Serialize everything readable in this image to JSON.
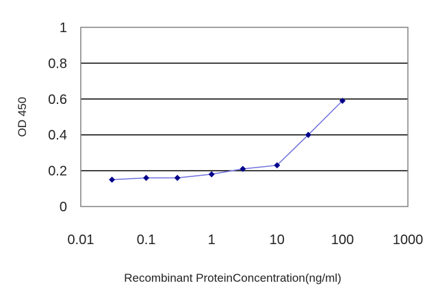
{
  "chart_data": {
    "type": "line",
    "xscale": "log",
    "xlabel": "Recombinant ProteinConcentration(ng/ml)",
    "ylabel": "OD 450",
    "xlim": [
      0.01,
      1000
    ],
    "ylim": [
      0,
      1
    ],
    "grid": true,
    "x_ticks": [
      "0.01",
      "0.1",
      "1",
      "10",
      "100",
      "1000"
    ],
    "y_ticks": [
      "0",
      "0.2",
      "0.4",
      "0.6",
      "0.8",
      "1"
    ],
    "series": [
      {
        "x": [
          0.03,
          0.1,
          0.3,
          1,
          3,
          10,
          30,
          100
        ],
        "y": [
          0.15,
          0.16,
          0.16,
          0.18,
          0.21,
          0.23,
          0.4,
          0.59
        ],
        "color": "#00008B"
      }
    ],
    "colors": {
      "line": "#7070dd",
      "marker": "#00008B",
      "grid": "#000000"
    }
  }
}
